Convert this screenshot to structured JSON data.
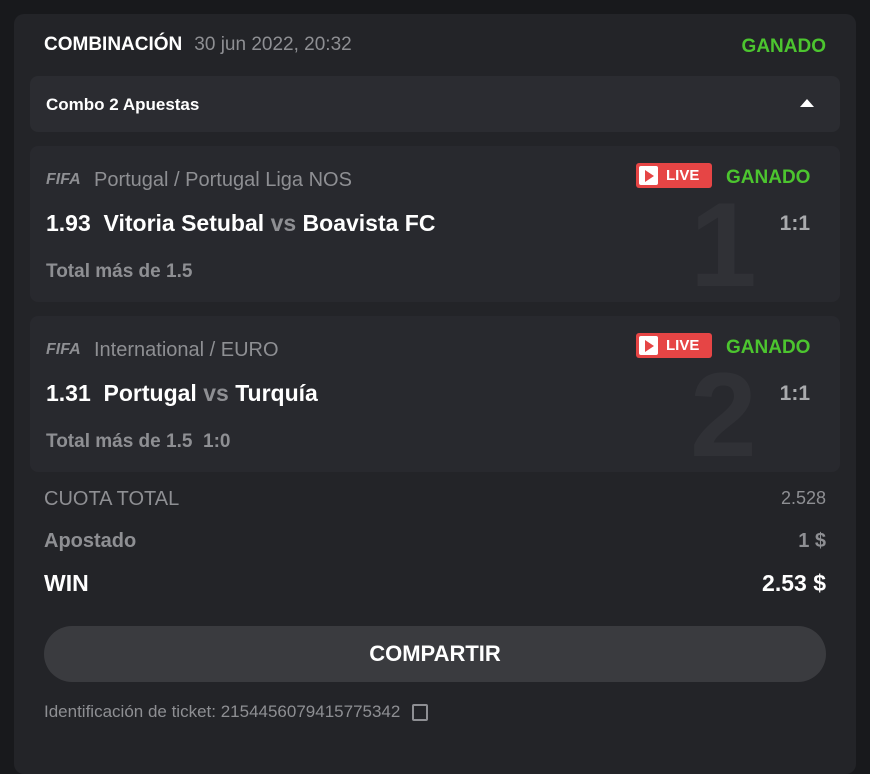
{
  "header": {
    "title": "COMBINACIÓN",
    "date": "30 jun 2022, 20:32",
    "status": "GANADO"
  },
  "combo": {
    "label": "Combo 2 Apuestas"
  },
  "bets": [
    {
      "number": "1",
      "sport": "FIFA",
      "league": "Portugal / Portugal Liga NOS",
      "live": "LIVE",
      "status": "GANADO",
      "odds": "1.93",
      "home": "Vitoria Setubal",
      "vs": "vs",
      "away": "Boavista FC",
      "score": "1:1",
      "market": "Total más de 1.5",
      "extra": ""
    },
    {
      "number": "2",
      "sport": "FIFA",
      "league": "International / EURO",
      "live": "LIVE",
      "status": "GANADO",
      "odds": "1.31",
      "home": "Portugal",
      "vs": "vs",
      "away": "Turquía",
      "score": "1:1",
      "market": "Total más de 1.5",
      "extra": "1:0"
    }
  ],
  "summary": {
    "total_odds_label": "CUOTA TOTAL",
    "total_odds": "2.528",
    "staked_label": "Apostado",
    "staked": "1 $",
    "win_label": "WIN",
    "win": "2.53 $"
  },
  "share_label": "COMPARTIR",
  "ticket": "Identificación de ticket: 2154456079415775342",
  "colors": {
    "win": "#4cc52f",
    "live": "#e64545"
  }
}
